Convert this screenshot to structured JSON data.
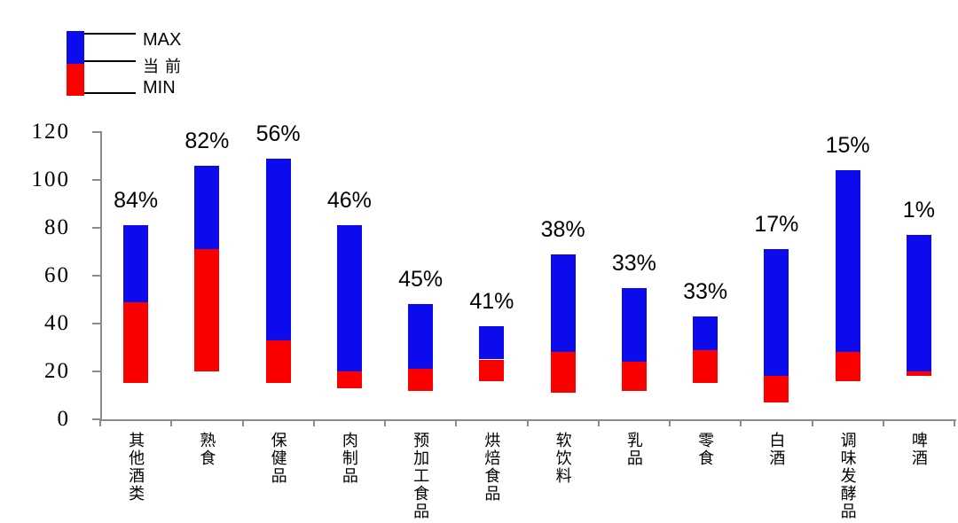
{
  "legend": {
    "max_label": "MAX",
    "current_label": "当前",
    "min_label": "MIN"
  },
  "colors": {
    "max_bar_blue": "#0B0BEE",
    "min_bar_red": "#FC0000",
    "axis_gray": "#8C8C8C",
    "text_black": "#000000"
  },
  "chart_data": {
    "type": "bar",
    "subtype": "floating-range-stacked",
    "title": "",
    "xlabel": "",
    "ylabel": "",
    "categories": [
      "其他酒类",
      "熟食",
      "保健品",
      "肉制品",
      "预加工食品",
      "烘焙食品",
      "软饮料",
      "乳品",
      "零食",
      "白酒",
      "调味发酵品",
      "啤酒"
    ],
    "series": [
      {
        "name": "MIN",
        "values": [
          15,
          20,
          15,
          13,
          12,
          16,
          11,
          12,
          15,
          7,
          16,
          18
        ]
      },
      {
        "name": "当前",
        "values": [
          49,
          71,
          33,
          20,
          21,
          25,
          28,
          24,
          29,
          18,
          28,
          20
        ]
      },
      {
        "name": "MAX",
        "values": [
          81,
          106,
          109,
          81,
          48,
          39,
          69,
          55,
          43,
          71,
          104,
          77
        ]
      }
    ],
    "bar_labels": [
      "84%",
      "82%",
      "56%",
      "46%",
      "45%",
      "41%",
      "38%",
      "33%",
      "33%",
      "17%",
      "15%",
      "1%"
    ],
    "yticks": [
      0,
      20,
      40,
      60,
      80,
      100,
      120
    ],
    "ylim": [
      0,
      120
    ],
    "grid": false,
    "legend_position": "top-left",
    "note": "Each bar spans MIN to MAX; red segment is MIN to 当前 (current), blue segment is 当前 to MAX; percentage printed above each bar"
  }
}
